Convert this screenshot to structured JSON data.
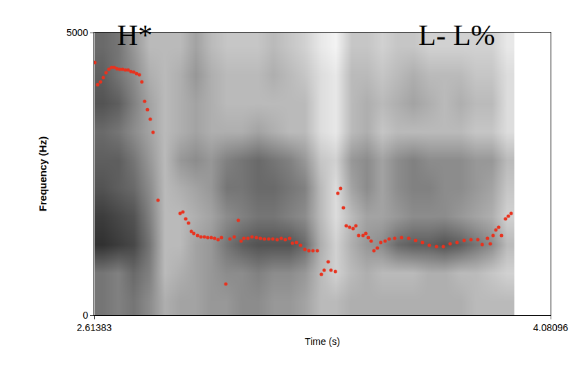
{
  "chart_data": {
    "type": "spectrogram",
    "xlabel": "Time (s)",
    "ylabel": "Frequency (Hz)",
    "xlim": [
      2.61383,
      4.08096
    ],
    "xticks": [
      2.61383,
      4.08096
    ],
    "ylim": [
      0,
      5000
    ],
    "yticks": [
      0,
      5000
    ],
    "grid": false,
    "spectrogram": {
      "x": [
        2.64,
        2.69,
        2.74,
        2.79,
        2.84,
        2.89,
        2.94,
        2.99,
        3.04,
        3.09,
        3.14,
        3.19,
        3.24,
        3.29,
        3.34,
        3.39,
        3.44,
        3.49,
        3.54,
        3.59,
        3.64,
        3.69,
        3.74,
        3.79,
        3.84,
        3.89,
        3.94
      ],
      "y": [
        250,
        750,
        1250,
        1750,
        2250,
        2750,
        3250,
        3750,
        4250,
        4750
      ],
      "z": [
        [
          0.6,
          0.55,
          0.6,
          0.5,
          0.35,
          0.4,
          0.4,
          0.45,
          0.45,
          0.5,
          0.5,
          0.45,
          0.45,
          0.4,
          0.3,
          0.3,
          0.35,
          0.35,
          0.35,
          0.35,
          0.35,
          0.35,
          0.35,
          0.35,
          0.3,
          0.3,
          0.3
        ],
        [
          0.6,
          0.55,
          0.65,
          0.55,
          0.3,
          0.35,
          0.4,
          0.45,
          0.5,
          0.5,
          0.55,
          0.5,
          0.5,
          0.45,
          0.3,
          0.2,
          0.3,
          0.35,
          0.3,
          0.3,
          0.3,
          0.35,
          0.35,
          0.3,
          0.3,
          0.25,
          0.2
        ],
        [
          0.9,
          0.85,
          0.8,
          0.6,
          0.3,
          0.3,
          0.4,
          0.45,
          0.6,
          0.7,
          0.75,
          0.75,
          0.75,
          0.65,
          0.35,
          0.2,
          0.35,
          0.45,
          0.5,
          0.65,
          0.7,
          0.7,
          0.75,
          0.7,
          0.6,
          0.5,
          0.3
        ],
        [
          0.85,
          0.8,
          0.75,
          0.55,
          0.3,
          0.3,
          0.35,
          0.4,
          0.5,
          0.55,
          0.6,
          0.6,
          0.55,
          0.5,
          0.3,
          0.15,
          0.3,
          0.4,
          0.4,
          0.45,
          0.5,
          0.5,
          0.5,
          0.45,
          0.4,
          0.35,
          0.2
        ],
        [
          0.75,
          0.7,
          0.65,
          0.5,
          0.3,
          0.35,
          0.4,
          0.45,
          0.6,
          0.6,
          0.65,
          0.65,
          0.6,
          0.55,
          0.3,
          0.15,
          0.4,
          0.5,
          0.4,
          0.5,
          0.55,
          0.55,
          0.5,
          0.5,
          0.45,
          0.4,
          0.25
        ],
        [
          0.7,
          0.7,
          0.6,
          0.45,
          0.3,
          0.45,
          0.5,
          0.45,
          0.55,
          0.6,
          0.65,
          0.6,
          0.55,
          0.45,
          0.25,
          0.2,
          0.45,
          0.5,
          0.4,
          0.5,
          0.55,
          0.5,
          0.5,
          0.5,
          0.45,
          0.45,
          0.3
        ],
        [
          0.65,
          0.6,
          0.5,
          0.4,
          0.3,
          0.35,
          0.4,
          0.35,
          0.35,
          0.35,
          0.4,
          0.35,
          0.3,
          0.3,
          0.15,
          0.1,
          0.3,
          0.35,
          0.25,
          0.3,
          0.3,
          0.3,
          0.3,
          0.3,
          0.25,
          0.25,
          0.15
        ],
        [
          0.75,
          0.7,
          0.55,
          0.4,
          0.3,
          0.35,
          0.4,
          0.35,
          0.3,
          0.3,
          0.3,
          0.3,
          0.3,
          0.3,
          0.15,
          0.1,
          0.3,
          0.35,
          0.3,
          0.35,
          0.4,
          0.35,
          0.3,
          0.35,
          0.3,
          0.3,
          0.15
        ],
        [
          0.7,
          0.6,
          0.5,
          0.35,
          0.3,
          0.35,
          0.45,
          0.35,
          0.3,
          0.3,
          0.3,
          0.35,
          0.3,
          0.25,
          0.15,
          0.1,
          0.3,
          0.3,
          0.25,
          0.3,
          0.35,
          0.3,
          0.3,
          0.3,
          0.25,
          0.25,
          0.15
        ],
        [
          0.65,
          0.6,
          0.45,
          0.3,
          0.3,
          0.3,
          0.4,
          0.3,
          0.25,
          0.25,
          0.25,
          0.3,
          0.25,
          0.2,
          0.1,
          0.05,
          0.25,
          0.25,
          0.2,
          0.25,
          0.25,
          0.2,
          0.2,
          0.2,
          0.2,
          0.2,
          0.1
        ]
      ],
      "zlim": [
        0,
        1
      ]
    },
    "series": [
      {
        "type": "scatter",
        "color": "#e8321e",
        "marker": "circle",
        "x": [
          2.616,
          2.625,
          2.634,
          2.643,
          2.652,
          2.661,
          2.67,
          2.678,
          2.687,
          2.696,
          2.705,
          2.714,
          2.723,
          2.732,
          2.741,
          2.75,
          2.759,
          2.767,
          2.776,
          2.785,
          2.794,
          2.803,
          2.819,
          2.89,
          2.899,
          2.908,
          2.917,
          2.926,
          2.934,
          2.946,
          2.957,
          2.968,
          2.979,
          2.99,
          3.001,
          3.012,
          3.023,
          3.037,
          3.05,
          3.064,
          3.077,
          3.086,
          3.095,
          3.108,
          3.121,
          3.135,
          3.148,
          3.161,
          3.175,
          3.188,
          3.202,
          3.215,
          3.228,
          3.242,
          3.251,
          3.264,
          3.277,
          3.291,
          3.304,
          3.317,
          3.331,
          3.344,
          3.353,
          3.366,
          3.375,
          3.389,
          3.397,
          3.406,
          3.415,
          3.424,
          3.435,
          3.446,
          3.455,
          3.464,
          3.478,
          3.487,
          3.495,
          3.504,
          3.513,
          3.524,
          3.535,
          3.549,
          3.562,
          3.58,
          3.602,
          3.625,
          3.647,
          3.669,
          3.691,
          3.714,
          3.736,
          3.758,
          3.78,
          3.803,
          3.825,
          3.847,
          3.861,
          3.878,
          3.887,
          3.896,
          3.905,
          3.914,
          3.923,
          3.936,
          3.945,
          3.954
        ],
        "values": [
          4471,
          4079,
          4128,
          4202,
          4288,
          4349,
          4385,
          4385,
          4361,
          4349,
          4349,
          4337,
          4337,
          4312,
          4300,
          4275,
          4251,
          4128,
          3785,
          3638,
          3467,
          3234,
          2034,
          1801,
          1825,
          1703,
          1629,
          1482,
          1446,
          1409,
          1384,
          1384,
          1372,
          1372,
          1360,
          1335,
          1372,
          551,
          1348,
          1384,
          1678,
          1311,
          1360,
          1360,
          1384,
          1372,
          1360,
          1348,
          1348,
          1348,
          1335,
          1360,
          1335,
          1360,
          1274,
          1286,
          1237,
          1164,
          1139,
          1139,
          1139,
          723,
          796,
          943,
          796,
          772,
          2156,
          2242,
          1899,
          1580,
          1556,
          1531,
          1580,
          1409,
          1409,
          1446,
          1372,
          1311,
          1139,
          1188,
          1286,
          1311,
          1348,
          1360,
          1372,
          1360,
          1323,
          1286,
          1237,
          1213,
          1213,
          1262,
          1286,
          1323,
          1335,
          1335,
          1250,
          1360,
          1262,
          1409,
          1507,
          1556,
          1409,
          1703,
          1752,
          1801
        ]
      }
    ],
    "annotations": [
      {
        "text": "H*",
        "x": 2.745,
        "y": 4950
      },
      {
        "text": "L- L%",
        "x": 3.78,
        "y": 4950
      }
    ]
  }
}
